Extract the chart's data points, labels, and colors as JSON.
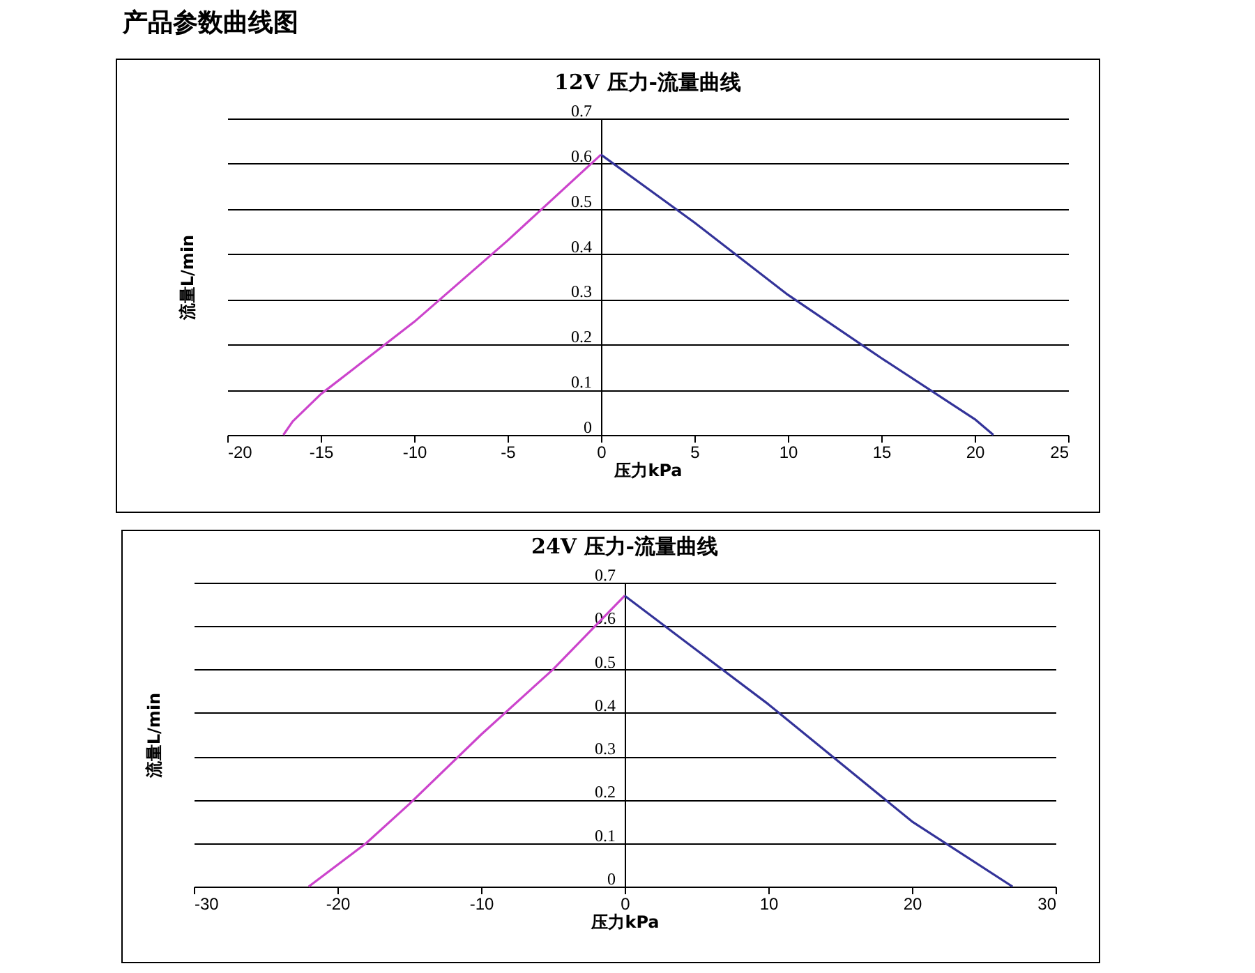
{
  "chart_data": [
    {
      "type": "line",
      "title": "12V 压力-流量曲线",
      "xlabel": "压力kPa",
      "ylabel": "流量L/min",
      "annotations": [
        "产品参数曲线图"
      ],
      "xlim": [
        -20,
        25
      ],
      "xticks": [
        -20,
        -15,
        -10,
        -5,
        0,
        5,
        10,
        15,
        20,
        25
      ],
      "ylim": [
        0,
        0.7
      ],
      "yticks": [
        0,
        0.1,
        0.2,
        0.3,
        0.4,
        0.5,
        0.6,
        0.7
      ],
      "grid": "y",
      "series": [
        {
          "color": "#cc44cc",
          "x": [
            -17,
            -16.5,
            -15,
            -10,
            -5,
            0
          ],
          "values": [
            0,
            0.03,
            0.09,
            0.25,
            0.43,
            0.62
          ]
        },
        {
          "color": "#333399",
          "x": [
            0,
            5,
            10,
            15,
            20,
            21
          ],
          "values": [
            0.62,
            0.47,
            0.31,
            0.17,
            0.035,
            0
          ]
        }
      ]
    },
    {
      "type": "line",
      "title": "24V 压力-流量曲线",
      "xlabel": "压力kPa",
      "ylabel": "流量L/min",
      "xlim": [
        -30,
        30
      ],
      "xticks": [
        -30,
        -20,
        -10,
        0,
        10,
        20,
        30
      ],
      "ylim": [
        0,
        0.7
      ],
      "yticks": [
        0,
        0.1,
        0.2,
        0.3,
        0.4,
        0.5,
        0.6,
        0.7
      ],
      "grid": "y",
      "series": [
        {
          "color": "#cc44cc",
          "x": [
            -22,
            -18,
            -15,
            -10,
            -5,
            0
          ],
          "values": [
            0,
            0.1,
            0.19,
            0.35,
            0.5,
            0.67
          ]
        },
        {
          "color": "#333399",
          "x": [
            0,
            10,
            20,
            27
          ],
          "values": [
            0.67,
            0.42,
            0.15,
            0
          ]
        }
      ]
    }
  ]
}
